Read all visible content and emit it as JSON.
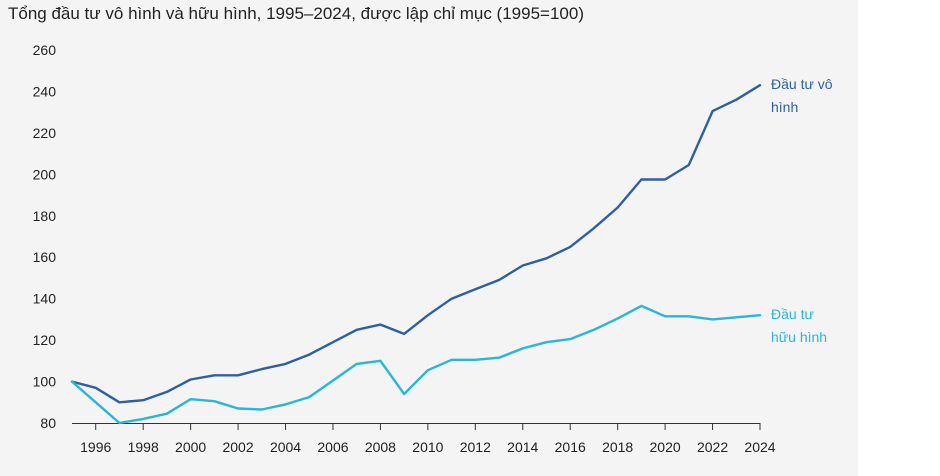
{
  "chart_data": {
    "type": "line",
    "title": "Tổng đầu tư vô hình và hữu hình, 1995–2024, được lập chỉ mục (1995=100)",
    "xlabel": "",
    "ylabel": "",
    "x": [
      1995,
      1996,
      1997,
      1998,
      1999,
      2000,
      2001,
      2002,
      2003,
      2004,
      2005,
      2006,
      2007,
      2008,
      2009,
      2010,
      2011,
      2012,
      2013,
      2014,
      2015,
      2016,
      2017,
      2018,
      2019,
      2020,
      2021,
      2022,
      2023,
      2024
    ],
    "xlim": [
      1995,
      2024
    ],
    "ylim": [
      80,
      260
    ],
    "x_ticks": [
      1996,
      1998,
      2000,
      2002,
      2004,
      2006,
      2008,
      2010,
      2012,
      2014,
      2016,
      2018,
      2020,
      2022,
      2024
    ],
    "y_ticks": [
      80,
      100,
      120,
      140,
      160,
      180,
      200,
      220,
      240,
      260
    ],
    "grid": false,
    "legend": "direct labels at line ends",
    "series": [
      {
        "name_lines": [
          "Đầu tư vô",
          "hình"
        ],
        "color": "#2f5fa3",
        "values": [
          100,
          97,
          90,
          91,
          95,
          101,
          103,
          103,
          106,
          108.5,
          113,
          119,
          125,
          127.5,
          123,
          132,
          140,
          144.5,
          149,
          156,
          159.5,
          165,
          174,
          184,
          197.5,
          197.5,
          204.5,
          230.5,
          236,
          243
        ]
      },
      {
        "name_lines": [
          "Đầu tư",
          "hữu hình"
        ],
        "color": "#2bb5d6",
        "values": [
          100,
          90,
          80,
          82,
          84.5,
          91.5,
          90.5,
          87,
          86.5,
          89,
          92.5,
          100.5,
          108.5,
          110,
          94,
          105.5,
          110.5,
          110.5,
          111.5,
          116,
          119,
          120.5,
          125,
          130.5,
          136.5,
          131.5,
          131.5,
          130,
          131,
          132
        ]
      }
    ]
  }
}
